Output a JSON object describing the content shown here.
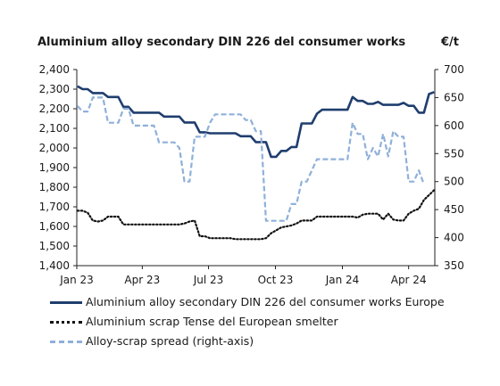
{
  "title": "Aluminium alloy secondary DIN 226 del consumer works",
  "unit": "€/t",
  "chart_data": {
    "type": "line",
    "x_ticks": [
      "Jan 23",
      "Apr 23",
      "Jul 23",
      "Oct 23",
      "Jan 24",
      "Apr 24"
    ],
    "x_range_months": [
      "Jan 23",
      "May 24"
    ],
    "left_axis": {
      "ticks": [
        1400,
        1500,
        1600,
        1700,
        1800,
        1900,
        2000,
        2100,
        2200,
        2300,
        2400
      ],
      "ylim": [
        1400,
        2400
      ]
    },
    "right_axis": {
      "ticks": [
        350,
        400,
        450,
        500,
        550,
        600,
        650,
        700
      ],
      "ylim": [
        350,
        700
      ]
    },
    "grid": false,
    "legend_position": "bottom",
    "series": [
      {
        "name": "Aluminium alloy secondary DIN 226 del consumer works Europe",
        "axis": "left",
        "color": "#1f3e6e",
        "style": "solid",
        "points": [
          [
            "2023-01-02",
            2315
          ],
          [
            "2023-01-09",
            2300
          ],
          [
            "2023-01-16",
            2300
          ],
          [
            "2023-01-23",
            2280
          ],
          [
            "2023-01-30",
            2280
          ],
          [
            "2023-02-06",
            2280
          ],
          [
            "2023-02-13",
            2260
          ],
          [
            "2023-02-20",
            2260
          ],
          [
            "2023-02-27",
            2260
          ],
          [
            "2023-03-06",
            2210
          ],
          [
            "2023-03-13",
            2210
          ],
          [
            "2023-03-20",
            2180
          ],
          [
            "2023-03-27",
            2180
          ],
          [
            "2023-04-03",
            2180
          ],
          [
            "2023-04-10",
            2180
          ],
          [
            "2023-04-17",
            2180
          ],
          [
            "2023-04-24",
            2180
          ],
          [
            "2023-05-01",
            2160
          ],
          [
            "2023-05-08",
            2160
          ],
          [
            "2023-05-15",
            2160
          ],
          [
            "2023-05-22",
            2160
          ],
          [
            "2023-05-29",
            2130
          ],
          [
            "2023-06-05",
            2130
          ],
          [
            "2023-06-12",
            2130
          ],
          [
            "2023-06-19",
            2080
          ],
          [
            "2023-06-26",
            2080
          ],
          [
            "2023-07-03",
            2075
          ],
          [
            "2023-07-10",
            2075
          ],
          [
            "2023-07-17",
            2075
          ],
          [
            "2023-07-24",
            2075
          ],
          [
            "2023-07-31",
            2075
          ],
          [
            "2023-08-07",
            2075
          ],
          [
            "2023-08-14",
            2060
          ],
          [
            "2023-08-21",
            2060
          ],
          [
            "2023-08-28",
            2060
          ],
          [
            "2023-09-04",
            2030
          ],
          [
            "2023-09-11",
            2030
          ],
          [
            "2023-09-18",
            2030
          ],
          [
            "2023-09-25",
            1955
          ],
          [
            "2023-10-02",
            1955
          ],
          [
            "2023-10-09",
            1985
          ],
          [
            "2023-10-16",
            1985
          ],
          [
            "2023-10-23",
            2005
          ],
          [
            "2023-10-30",
            2005
          ],
          [
            "2023-11-06",
            2125
          ],
          [
            "2023-11-13",
            2125
          ],
          [
            "2023-11-20",
            2125
          ],
          [
            "2023-11-27",
            2175
          ],
          [
            "2023-12-04",
            2195
          ],
          [
            "2023-12-11",
            2195
          ],
          [
            "2023-12-18",
            2195
          ],
          [
            "2023-12-25",
            2195
          ],
          [
            "2024-01-01",
            2195
          ],
          [
            "2024-01-08",
            2195
          ],
          [
            "2024-01-15",
            2260
          ],
          [
            "2024-01-22",
            2240
          ],
          [
            "2024-01-29",
            2240
          ],
          [
            "2024-02-05",
            2225
          ],
          [
            "2024-02-12",
            2225
          ],
          [
            "2024-02-19",
            2235
          ],
          [
            "2024-02-26",
            2220
          ],
          [
            "2024-03-04",
            2220
          ],
          [
            "2024-03-11",
            2220
          ],
          [
            "2024-03-18",
            2220
          ],
          [
            "2024-03-25",
            2230
          ],
          [
            "2024-04-01",
            2215
          ],
          [
            "2024-04-08",
            2215
          ],
          [
            "2024-04-15",
            2180
          ],
          [
            "2024-04-22",
            2180
          ],
          [
            "2024-04-29",
            2275
          ],
          [
            "2024-05-06",
            2285
          ]
        ]
      },
      {
        "name": "Aluminium scrap Tense del European smelter",
        "axis": "left",
        "color": "#111111",
        "style": "dotted",
        "points": [
          [
            "2023-01-02",
            1680
          ],
          [
            "2023-01-09",
            1680
          ],
          [
            "2023-01-16",
            1670
          ],
          [
            "2023-01-23",
            1630
          ],
          [
            "2023-01-30",
            1625
          ],
          [
            "2023-02-06",
            1630
          ],
          [
            "2023-02-13",
            1650
          ],
          [
            "2023-02-20",
            1650
          ],
          [
            "2023-02-27",
            1650
          ],
          [
            "2023-03-06",
            1610
          ],
          [
            "2023-03-13",
            1610
          ],
          [
            "2023-03-20",
            1610
          ],
          [
            "2023-03-27",
            1610
          ],
          [
            "2023-04-03",
            1610
          ],
          [
            "2023-04-10",
            1610
          ],
          [
            "2023-04-17",
            1610
          ],
          [
            "2023-04-24",
            1610
          ],
          [
            "2023-05-01",
            1610
          ],
          [
            "2023-05-08",
            1610
          ],
          [
            "2023-05-15",
            1610
          ],
          [
            "2023-05-22",
            1610
          ],
          [
            "2023-05-29",
            1615
          ],
          [
            "2023-06-05",
            1625
          ],
          [
            "2023-06-12",
            1630
          ],
          [
            "2023-06-19",
            1550
          ],
          [
            "2023-06-26",
            1550
          ],
          [
            "2023-07-03",
            1540
          ],
          [
            "2023-07-10",
            1540
          ],
          [
            "2023-07-17",
            1540
          ],
          [
            "2023-07-24",
            1540
          ],
          [
            "2023-07-31",
            1540
          ],
          [
            "2023-08-07",
            1535
          ],
          [
            "2023-08-14",
            1535
          ],
          [
            "2023-08-21",
            1535
          ],
          [
            "2023-08-28",
            1535
          ],
          [
            "2023-09-04",
            1535
          ],
          [
            "2023-09-11",
            1535
          ],
          [
            "2023-09-18",
            1540
          ],
          [
            "2023-09-25",
            1565
          ],
          [
            "2023-10-02",
            1580
          ],
          [
            "2023-10-09",
            1595
          ],
          [
            "2023-10-16",
            1600
          ],
          [
            "2023-10-23",
            1605
          ],
          [
            "2023-10-30",
            1615
          ],
          [
            "2023-11-06",
            1630
          ],
          [
            "2023-11-13",
            1630
          ],
          [
            "2023-11-20",
            1630
          ],
          [
            "2023-11-27",
            1650
          ],
          [
            "2023-12-04",
            1650
          ],
          [
            "2023-12-11",
            1650
          ],
          [
            "2023-12-18",
            1650
          ],
          [
            "2023-12-25",
            1650
          ],
          [
            "2024-01-01",
            1650
          ],
          [
            "2024-01-08",
            1650
          ],
          [
            "2024-01-15",
            1650
          ],
          [
            "2024-01-22",
            1645
          ],
          [
            "2024-01-29",
            1660
          ],
          [
            "2024-02-05",
            1665
          ],
          [
            "2024-02-12",
            1665
          ],
          [
            "2024-02-19",
            1665
          ],
          [
            "2024-02-26",
            1635
          ],
          [
            "2024-03-04",
            1665
          ],
          [
            "2024-03-11",
            1635
          ],
          [
            "2024-03-18",
            1630
          ],
          [
            "2024-03-25",
            1630
          ],
          [
            "2024-04-01",
            1665
          ],
          [
            "2024-04-08",
            1680
          ],
          [
            "2024-04-15",
            1690
          ],
          [
            "2024-04-22",
            1735
          ],
          [
            "2024-04-29",
            1760
          ],
          [
            "2024-05-06",
            1785
          ]
        ]
      },
      {
        "name": "Alloy-scrap spread (right-axis)",
        "axis": "right",
        "color": "#8fb0d9",
        "style": "dashed",
        "points": [
          [
            "2023-01-02",
            635
          ],
          [
            "2023-01-09",
            625
          ],
          [
            "2023-01-16",
            625
          ],
          [
            "2023-01-23",
            650
          ],
          [
            "2023-01-30",
            650
          ],
          [
            "2023-02-06",
            650
          ],
          [
            "2023-02-13",
            605
          ],
          [
            "2023-02-20",
            605
          ],
          [
            "2023-02-27",
            605
          ],
          [
            "2023-03-06",
            630
          ],
          [
            "2023-03-13",
            630
          ],
          [
            "2023-03-20",
            600
          ],
          [
            "2023-03-27",
            600
          ],
          [
            "2023-04-03",
            600
          ],
          [
            "2023-04-10",
            600
          ],
          [
            "2023-04-17",
            600
          ],
          [
            "2023-04-24",
            570
          ],
          [
            "2023-05-01",
            570
          ],
          [
            "2023-05-08",
            570
          ],
          [
            "2023-05-15",
            570
          ],
          [
            "2023-05-22",
            560
          ],
          [
            "2023-05-29",
            500
          ],
          [
            "2023-06-05",
            500
          ],
          [
            "2023-06-12",
            580
          ],
          [
            "2023-06-19",
            580
          ],
          [
            "2023-06-26",
            580
          ],
          [
            "2023-07-03",
            605
          ],
          [
            "2023-07-10",
            620
          ],
          [
            "2023-07-17",
            620
          ],
          [
            "2023-07-24",
            620
          ],
          [
            "2023-07-31",
            620
          ],
          [
            "2023-08-07",
            620
          ],
          [
            "2023-08-14",
            620
          ],
          [
            "2023-08-21",
            610
          ],
          [
            "2023-08-28",
            610
          ],
          [
            "2023-09-04",
            590
          ],
          [
            "2023-09-11",
            590
          ],
          [
            "2023-09-18",
            430
          ],
          [
            "2023-09-25",
            430
          ],
          [
            "2023-10-02",
            430
          ],
          [
            "2023-10-09",
            430
          ],
          [
            "2023-10-16",
            430
          ],
          [
            "2023-10-23",
            460
          ],
          [
            "2023-10-30",
            460
          ],
          [
            "2023-11-06",
            500
          ],
          [
            "2023-11-13",
            500
          ],
          [
            "2023-11-20",
            520
          ],
          [
            "2023-11-27",
            540
          ],
          [
            "2023-12-04",
            540
          ],
          [
            "2023-12-11",
            540
          ],
          [
            "2023-12-18",
            540
          ],
          [
            "2023-12-25",
            540
          ],
          [
            "2024-01-01",
            540
          ],
          [
            "2024-01-08",
            540
          ],
          [
            "2024-01-15",
            605
          ],
          [
            "2024-01-22",
            585
          ],
          [
            "2024-01-29",
            585
          ],
          [
            "2024-02-05",
            540
          ],
          [
            "2024-02-12",
            560
          ],
          [
            "2024-02-19",
            545
          ],
          [
            "2024-02-26",
            585
          ],
          [
            "2024-03-04",
            545
          ],
          [
            "2024-03-11",
            590
          ],
          [
            "2024-03-18",
            580
          ],
          [
            "2024-03-25",
            580
          ],
          [
            "2024-04-01",
            500
          ],
          [
            "2024-04-08",
            500
          ],
          [
            "2024-04-15",
            520
          ],
          [
            "2024-04-22",
            495
          ]
        ]
      }
    ]
  }
}
